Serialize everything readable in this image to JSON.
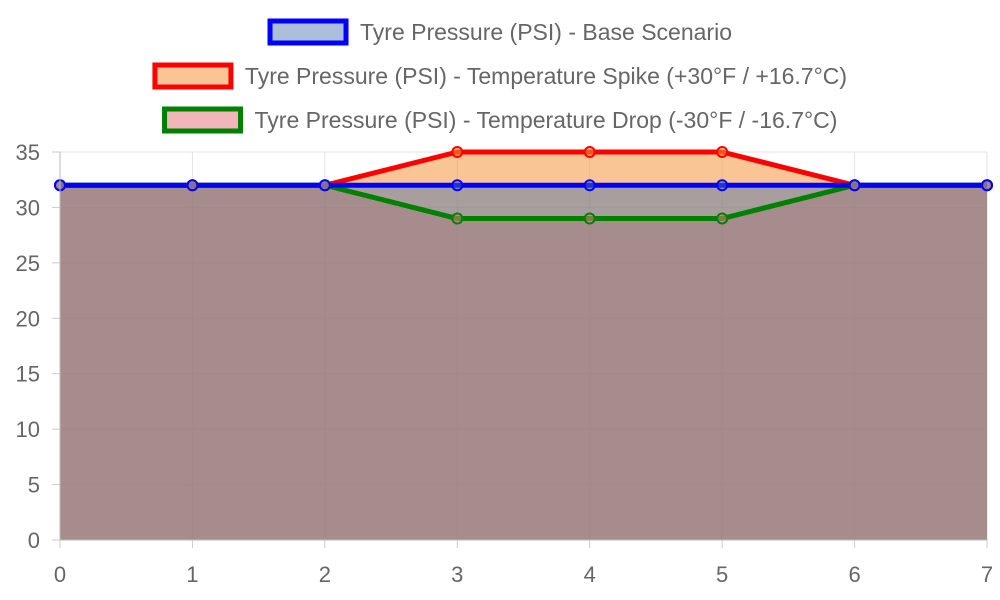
{
  "chart_data": {
    "type": "area",
    "x": [
      0,
      1,
      2,
      3,
      4,
      5,
      6,
      7
    ],
    "series": [
      {
        "name": "Tyre Pressure (PSI) - Base Scenario",
        "values": [
          32,
          32,
          32,
          32,
          32,
          32,
          32,
          32
        ],
        "line_color": "#0000ff",
        "fill_color": "rgba(70,110,170,0.45)"
      },
      {
        "name": "Tyre Pressure (PSI) - Temperature Spike (+30°F / +16.7°C)",
        "values": [
          32,
          32,
          32,
          35,
          35,
          35,
          32,
          32
        ],
        "line_color": "#ff0000",
        "fill_color": "rgba(245,150,60,0.55)"
      },
      {
        "name": "Tyre Pressure (PSI) - Temperature Drop (-30°F / -16.7°C)",
        "values": [
          32,
          32,
          32,
          29,
          29,
          29,
          32,
          32
        ],
        "line_color": "#008000",
        "fill_color": "rgba(230,120,130,0.55)"
      }
    ],
    "xlim": [
      0,
      7
    ],
    "ylim": [
      0,
      35
    ],
    "x_ticks": [
      "0",
      "1",
      "2",
      "3",
      "4",
      "5",
      "6",
      "7"
    ],
    "y_ticks": [
      "0",
      "5",
      "10",
      "15",
      "20",
      "25",
      "30",
      "35"
    ],
    "legend_position": "top",
    "grid": true
  }
}
